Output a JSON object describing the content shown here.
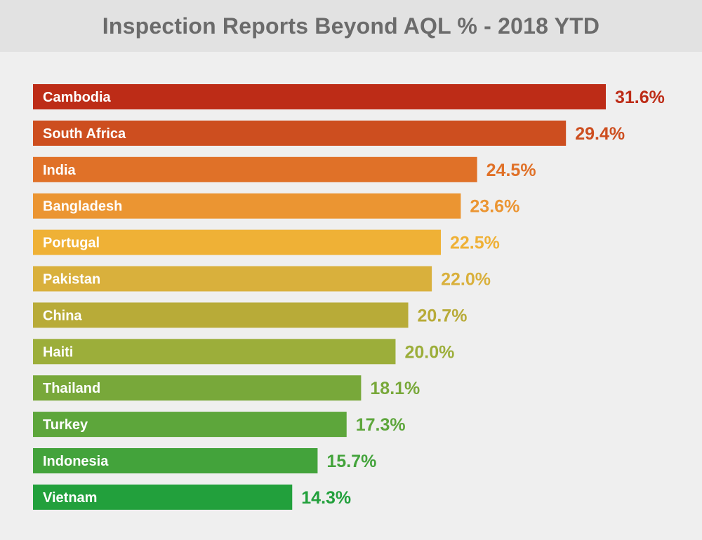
{
  "chart_data": {
    "type": "bar",
    "orientation": "horizontal",
    "title": "Inspection Reports Beyond AQL % - 2018 YTD",
    "categories": [
      "Cambodia",
      "South Africa",
      "India",
      "Bangladesh",
      "Portugal",
      "Pakistan",
      "China",
      "Haiti",
      "Thailand",
      "Turkey",
      "Indonesia",
      "Vietnam"
    ],
    "values": [
      31.6,
      29.4,
      24.5,
      23.6,
      22.5,
      22.0,
      20.7,
      20.0,
      18.1,
      17.3,
      15.7,
      14.3
    ],
    "value_labels": [
      "31.6%",
      "29.4%",
      "24.5%",
      "23.6%",
      "22.5%",
      "22.0%",
      "20.7%",
      "20.0%",
      "18.1%",
      "17.3%",
      "15.7%",
      "14.3%"
    ],
    "colors": [
      "#bd2c17",
      "#cd4e1f",
      "#e07128",
      "#eb9532",
      "#efb136",
      "#d9b03c",
      "#b8ab38",
      "#9cae3a",
      "#78a83a",
      "#5da63b",
      "#43a33b",
      "#22a03c"
    ],
    "xlabel": "",
    "ylabel": "",
    "grid": false,
    "legend": "none"
  }
}
